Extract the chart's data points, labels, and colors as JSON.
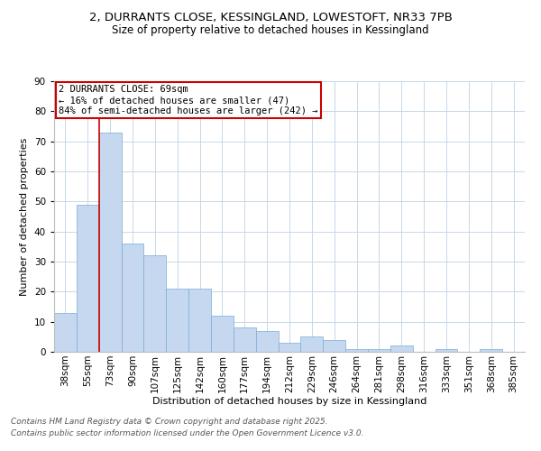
{
  "title1": "2, DURRANTS CLOSE, KESSINGLAND, LOWESTOFT, NR33 7PB",
  "title2": "Size of property relative to detached houses in Kessingland",
  "xlabel": "Distribution of detached houses by size in Kessingland",
  "ylabel": "Number of detached properties",
  "bar_labels": [
    "38sqm",
    "55sqm",
    "73sqm",
    "90sqm",
    "107sqm",
    "125sqm",
    "142sqm",
    "160sqm",
    "177sqm",
    "194sqm",
    "212sqm",
    "229sqm",
    "246sqm",
    "264sqm",
    "281sqm",
    "298sqm",
    "316sqm",
    "333sqm",
    "351sqm",
    "368sqm",
    "385sqm"
  ],
  "bar_heights": [
    13,
    49,
    73,
    36,
    32,
    21,
    21,
    12,
    8,
    7,
    3,
    5,
    4,
    1,
    1,
    2,
    0,
    1,
    0,
    1,
    0
  ],
  "bar_color": "#c5d8ef",
  "bar_edge_color": "#7aadd4",
  "red_line_index": 2,
  "annotation_text": "2 DURRANTS CLOSE: 69sqm\n← 16% of detached houses are smaller (47)\n84% of semi-detached houses are larger (242) →",
  "annotation_box_color": "#ffffff",
  "annotation_border_color": "#cc0000",
  "red_line_color": "#cc0000",
  "ylim": [
    0,
    90
  ],
  "yticks": [
    0,
    10,
    20,
    30,
    40,
    50,
    60,
    70,
    80,
    90
  ],
  "background_color": "#ffffff",
  "grid_color": "#c8d8e8",
  "footer1": "Contains HM Land Registry data © Crown copyright and database right 2025.",
  "footer2": "Contains public sector information licensed under the Open Government Licence v3.0.",
  "title_fontsize": 9.5,
  "subtitle_fontsize": 8.5,
  "axis_label_fontsize": 8,
  "tick_fontsize": 7.5,
  "annotation_fontsize": 7.5,
  "footer_fontsize": 6.5
}
